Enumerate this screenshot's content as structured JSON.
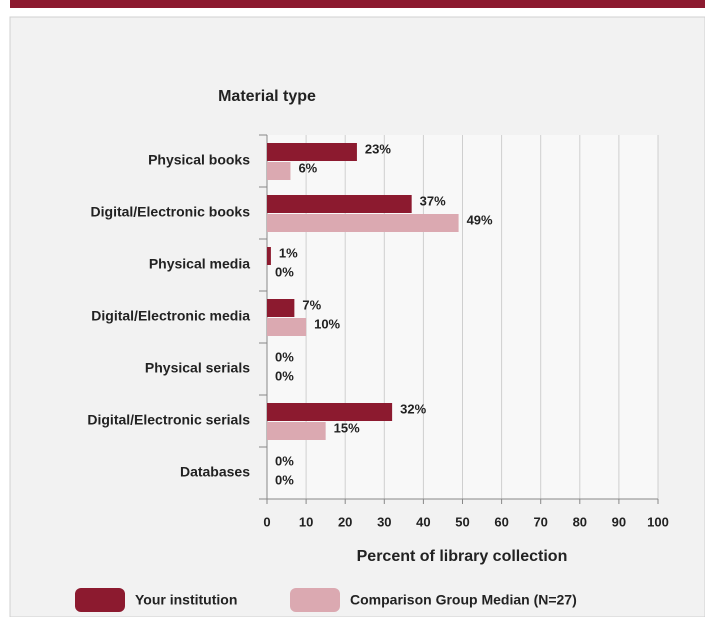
{
  "chart_data": {
    "type": "bar",
    "orientation": "horizontal",
    "title": "Material type",
    "x_label": "Percent of library collection",
    "categories": [
      "Physical books",
      "Digital/Electronic books",
      "Physical media",
      "Digital/Electronic media",
      "Physical serials",
      "Digital/Electronic serials",
      "Databases"
    ],
    "series": [
      {
        "name": "Your institution",
        "color": "#8c1a2f",
        "values": [
          23,
          37,
          1,
          7,
          0,
          32,
          0
        ],
        "value_labels": [
          "23%",
          "37%",
          "1%",
          "7%",
          "0%",
          "32%",
          "0%"
        ]
      },
      {
        "name": "Comparison Group Median (N=27)",
        "color": "#dba9b1",
        "values": [
          6,
          49,
          0,
          10,
          0,
          15,
          0
        ],
        "value_labels": [
          "6%",
          "49%",
          "0%",
          "10%",
          "0%",
          "15%",
          "0%"
        ]
      }
    ],
    "xlim": [
      0,
      100
    ],
    "xticks": [
      0,
      10,
      20,
      30,
      40,
      50,
      60,
      70,
      80,
      90,
      100
    ],
    "grid": true
  }
}
